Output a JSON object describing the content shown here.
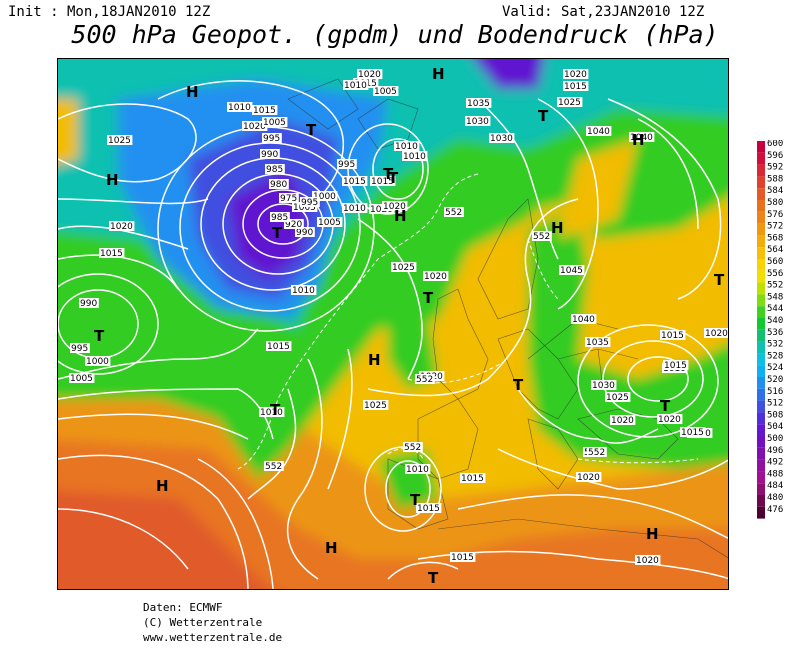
{
  "header": {
    "init": "Init : Mon,18JAN2010 12Z",
    "valid": "Valid: Sat,23JAN2010 12Z",
    "title": "500 hPa Geopot. (gpdm) und Bodendruck (hPa)"
  },
  "legend": {
    "levels": [
      600,
      596,
      592,
      588,
      584,
      580,
      576,
      572,
      568,
      564,
      560,
      556,
      552,
      548,
      544,
      540,
      536,
      532,
      528,
      524,
      520,
      516,
      512,
      508,
      504,
      500,
      496,
      492,
      488,
      484,
      480,
      476
    ],
    "colors": [
      "#c8003c",
      "#d0103a",
      "#d82a34",
      "#e0402e",
      "#e45a26",
      "#e8701e",
      "#ec8418",
      "#f09812",
      "#f4ac0c",
      "#f6c008",
      "#f8d404",
      "#f0e000",
      "#c0e000",
      "#80dc10",
      "#40d020",
      "#10c830",
      "#10c070",
      "#10c0b0",
      "#10c0e0",
      "#10b0f0",
      "#2090f0",
      "#3070e8",
      "#4050e0",
      "#5030d8",
      "#6018d0",
      "#7010c0",
      "#8010b0",
      "#9010a0",
      "#a01090",
      "#901070",
      "#700850",
      "#500030"
    ]
  },
  "map": {
    "highs": [
      "H",
      "H",
      "H",
      "H",
      "H",
      "H",
      "H",
      "H",
      "H",
      "H"
    ],
    "lows": [
      "T",
      "T",
      "T",
      "T",
      "T",
      "T",
      "T",
      "T",
      "T",
      "T",
      "T",
      "T",
      "T"
    ],
    "isobar_labels": [
      "1025",
      "1020",
      "1015",
      "990",
      "995",
      "1000",
      "1005",
      "1010",
      "1015",
      "1020",
      "1005",
      "995",
      "990",
      "985",
      "980",
      "975",
      "1005",
      "1000",
      "995",
      "990",
      "1010",
      "1015",
      "1010",
      "1005",
      "1010",
      "1020",
      "995",
      "1020",
      "1015",
      "1010",
      "1005",
      "1015",
      "1010",
      "1015",
      "1025",
      "1020",
      "1020",
      "1035",
      "1030",
      "1030",
      "1025",
      "1020",
      "1015",
      "1040",
      "1040",
      "1045",
      "1040",
      "1035",
      "1030",
      "1025",
      "1020",
      "1015",
      "1010",
      "1020",
      "1015",
      "1020",
      "1020",
      "1025",
      "1015",
      "1010",
      "1015",
      "1015",
      "1020",
      "1020",
      "1015",
      "1020",
      "920",
      "1010",
      "985"
    ],
    "geopot_labels": [
      "552",
      "552",
      "552",
      "552",
      "552",
      "552",
      "552"
    ]
  },
  "credits": {
    "line1": "Daten: ECMWF",
    "line2": "(C) Wetterzentrale",
    "line3": "www.wetterzentrale.de"
  }
}
